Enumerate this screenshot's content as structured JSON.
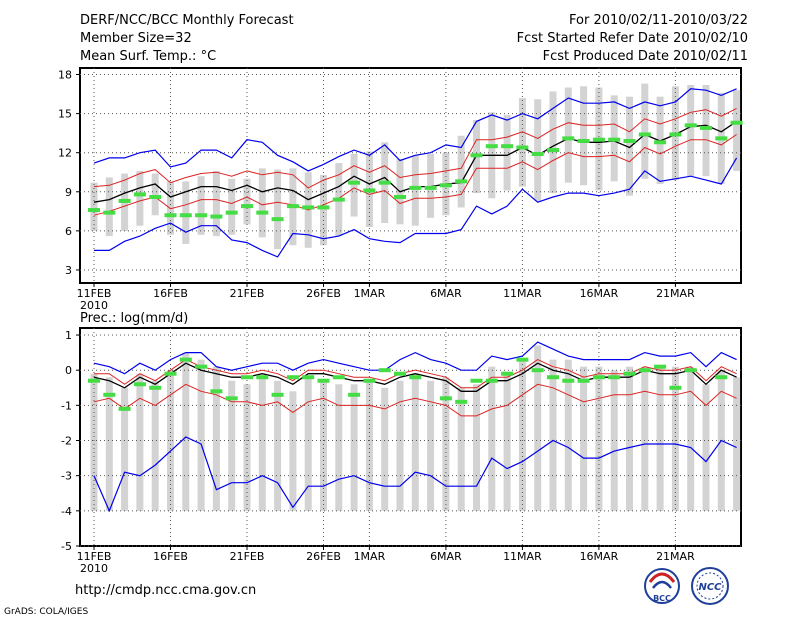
{
  "header": {
    "title": "DERF/NCC/BCC Monthly Forecast",
    "member_size": "Member Size=32",
    "variable": "Mean Surf. Temp.: °C",
    "period": "For 2010/02/11-2010/03/22",
    "start": "Fcst Started Refer Date 2010/02/10",
    "produced": "Fcst Produced Date 2010/02/11"
  },
  "footer": {
    "url": "http://cmdp.ncc.cma.gov.cn",
    "grads": "GrADS: COLA/IGES",
    "logo_bcc": "BCC",
    "logo_ncc": "NCC"
  },
  "colors": {
    "ensemble_mean": "#000000",
    "spread": "#dd2222",
    "extremes": "#0000ee",
    "observed": "#44dd44",
    "box": "#d3d3d3"
  },
  "chart_data": [
    {
      "type": "line",
      "title": "Mean Surf. Temp.: °C",
      "x_start": "11FEB",
      "x_tick_labels": [
        "11FEB",
        "16FEB",
        "21FEB",
        "26FEB",
        "1MAR",
        "6MAR",
        "11MAR",
        "16MAR",
        "21MAR"
      ],
      "x_tick_days": [
        0,
        5,
        10,
        15,
        18,
        23,
        28,
        33,
        38
      ],
      "year_label": "2010",
      "ylim": [
        2,
        18.5
      ],
      "y_ticks": [
        3,
        6,
        9,
        12,
        15,
        18
      ],
      "series": [
        {
          "name": "ensemble mean",
          "values": [
            8.2,
            8.4,
            8.9,
            9.3,
            9.6,
            8.6,
            9.0,
            9.4,
            9.4,
            9.1,
            9.5,
            9.0,
            9.3,
            9.1,
            8.4,
            8.9,
            9.4,
            10.2,
            9.6,
            10.1,
            9.0,
            9.4,
            9.4,
            9.6,
            9.7,
            11.8,
            11.8,
            11.8,
            12.4,
            11.8,
            12.5,
            13.1,
            12.8,
            12.8,
            12.9,
            12.4,
            13.4,
            12.9,
            13.4,
            14.0,
            14.1,
            13.6,
            14.4
          ]
        },
        {
          "name": "upper spread",
          "values": [
            9.4,
            9.5,
            9.9,
            10.4,
            10.7,
            9.7,
            10.1,
            10.4,
            10.5,
            10.2,
            10.6,
            10.3,
            10.5,
            10.3,
            9.3,
            9.9,
            10.3,
            11.0,
            10.5,
            11.0,
            10.1,
            10.3,
            10.4,
            10.6,
            10.8,
            13.0,
            13.0,
            13.2,
            13.6,
            13.1,
            13.8,
            14.3,
            14.1,
            14.1,
            14.2,
            13.6,
            14.6,
            14.2,
            14.6,
            15.1,
            15.3,
            14.8,
            15.4
          ]
        },
        {
          "name": "lower spread",
          "values": [
            7.2,
            7.5,
            7.9,
            8.3,
            8.6,
            7.7,
            8.0,
            8.4,
            8.4,
            8.1,
            8.6,
            8.0,
            8.2,
            8.0,
            7.6,
            8.0,
            8.5,
            9.3,
            8.8,
            9.1,
            8.1,
            8.5,
            8.5,
            8.6,
            8.8,
            10.8,
            10.8,
            10.8,
            11.3,
            10.7,
            11.4,
            12.0,
            11.7,
            11.7,
            11.8,
            11.3,
            12.4,
            11.9,
            12.5,
            13.0,
            13.0,
            12.6,
            13.4
          ]
        },
        {
          "name": "maximum",
          "values": [
            11.2,
            11.6,
            11.6,
            12.0,
            12.2,
            10.9,
            11.2,
            12.2,
            12.2,
            11.6,
            13.0,
            12.8,
            11.8,
            11.3,
            10.6,
            11.1,
            11.7,
            12.2,
            11.8,
            12.6,
            11.4,
            11.8,
            12.0,
            12.6,
            12.4,
            14.4,
            14.9,
            14.5,
            15.0,
            14.6,
            15.4,
            16.2,
            15.8,
            15.8,
            15.9,
            15.4,
            15.9,
            15.6,
            15.9,
            16.9,
            16.8,
            16.4,
            16.9
          ]
        },
        {
          "name": "minimum",
          "values": [
            4.5,
            4.5,
            5.2,
            5.6,
            6.2,
            6.6,
            5.9,
            6.4,
            6.4,
            5.3,
            5.1,
            4.5,
            4.0,
            5.8,
            5.7,
            5.4,
            5.6,
            6.1,
            5.4,
            5.2,
            5.1,
            5.8,
            5.8,
            5.8,
            6.1,
            7.9,
            7.3,
            7.9,
            9.2,
            8.2,
            8.6,
            8.9,
            8.9,
            8.7,
            8.9,
            9.2,
            10.6,
            9.8,
            10.0,
            10.2,
            9.9,
            9.6,
            11.6
          ]
        },
        {
          "name": "observed",
          "values": [
            7.6,
            7.4,
            8.3,
            8.8,
            8.6,
            7.2,
            7.2,
            7.2,
            7.1,
            7.4,
            7.9,
            7.4,
            6.9,
            7.9,
            7.8,
            7.8,
            8.4,
            9.7,
            9.1,
            9.7,
            8.6,
            9.3,
            9.3,
            9.5,
            9.8,
            11.8,
            12.5,
            12.5,
            12.4,
            11.9,
            12.2,
            13.1,
            12.9,
            13.0,
            13.0,
            12.9,
            13.4,
            12.8,
            13.4,
            14.1,
            13.9,
            13.1,
            14.3
          ]
        }
      ],
      "box_ranges": [
        [
          6.0,
          9.7
        ],
        [
          5.6,
          10.1
        ],
        [
          6.0,
          10.4
        ],
        [
          6.4,
          10.6
        ],
        [
          7.2,
          10.4
        ],
        [
          5.7,
          9.8
        ],
        [
          5.0,
          9.8
        ],
        [
          5.7,
          10.2
        ],
        [
          5.6,
          10.6
        ],
        [
          5.7,
          10.0
        ],
        [
          6.5,
          10.0
        ],
        [
          5.5,
          10.8
        ],
        [
          4.6,
          10.7
        ],
        [
          4.9,
          10.8
        ],
        [
          4.7,
          10.5
        ],
        [
          4.9,
          10.3
        ],
        [
          5.6,
          11.2
        ],
        [
          7.1,
          11.9
        ],
        [
          6.3,
          12.1
        ],
        [
          6.6,
          12.8
        ],
        [
          6.5,
          11.5
        ],
        [
          6.4,
          11.8
        ],
        [
          7.0,
          11.9
        ],
        [
          7.2,
          12.0
        ],
        [
          7.8,
          13.3
        ],
        [
          8.9,
          14.5
        ],
        [
          8.5,
          15.1
        ],
        [
          9.1,
          14.9
        ],
        [
          9.4,
          16.2
        ],
        [
          8.3,
          16.1
        ],
        [
          8.9,
          16.7
        ],
        [
          9.7,
          17.0
        ],
        [
          9.5,
          17.1
        ],
        [
          9.1,
          17.0
        ],
        [
          9.8,
          16.4
        ],
        [
          8.7,
          16.3
        ],
        [
          10.0,
          17.3
        ],
        [
          9.6,
          16.3
        ],
        [
          9.9,
          17.1
        ],
        [
          10.2,
          17.2
        ],
        [
          10.2,
          17.2
        ],
        [
          9.6,
          16.6
        ],
        [
          10.6,
          16.8
        ]
      ]
    },
    {
      "type": "line",
      "title": "Prec.: log(mm/d)",
      "x_start": "11FEB",
      "x_tick_labels": [
        "11FEB",
        "16FEB",
        "21FEB",
        "26FEB",
        "1MAR",
        "6MAR",
        "11MAR",
        "16MAR",
        "21MAR"
      ],
      "x_tick_days": [
        0,
        5,
        10,
        15,
        18,
        23,
        28,
        33,
        38
      ],
      "year_label": "2010",
      "ylim": [
        -5,
        1.2
      ],
      "y_ticks": [
        -5,
        -4,
        -3,
        -2,
        -1,
        0,
        1
      ],
      "series": [
        {
          "name": "ensemble mean",
          "values": [
            -0.2,
            -0.3,
            -0.5,
            -0.2,
            -0.4,
            -0.1,
            0.2,
            0.0,
            -0.1,
            -0.2,
            -0.2,
            -0.1,
            -0.2,
            -0.4,
            -0.1,
            -0.1,
            -0.2,
            -0.3,
            -0.3,
            -0.4,
            -0.2,
            -0.1,
            -0.2,
            -0.3,
            -0.6,
            -0.6,
            -0.3,
            -0.3,
            -0.1,
            0.2,
            0.0,
            -0.1,
            -0.3,
            -0.2,
            -0.2,
            -0.2,
            0.0,
            -0.1,
            -0.1,
            0.0,
            -0.4,
            0.0,
            -0.2
          ]
        },
        {
          "name": "upper spread",
          "values": [
            -0.1,
            -0.1,
            -0.4,
            -0.1,
            -0.3,
            0.0,
            0.3,
            0.1,
            0.0,
            -0.1,
            -0.1,
            0.0,
            -0.1,
            -0.3,
            0.0,
            0.0,
            -0.1,
            -0.2,
            -0.2,
            -0.3,
            -0.1,
            0.0,
            -0.1,
            -0.2,
            -0.5,
            -0.5,
            -0.2,
            -0.2,
            0.0,
            0.3,
            0.1,
            0.0,
            -0.2,
            -0.1,
            -0.1,
            -0.1,
            0.1,
            0.0,
            0.0,
            0.1,
            -0.3,
            0.1,
            -0.1
          ]
        },
        {
          "name": "lower spread",
          "values": [
            -0.9,
            -0.8,
            -1.1,
            -0.8,
            -1.0,
            -0.7,
            -0.4,
            -0.6,
            -0.7,
            -0.9,
            -0.9,
            -1.0,
            -0.9,
            -1.2,
            -0.9,
            -0.8,
            -1.0,
            -1.0,
            -1.0,
            -1.1,
            -0.9,
            -0.8,
            -0.9,
            -1.0,
            -1.3,
            -1.3,
            -1.1,
            -1.0,
            -0.7,
            -0.4,
            -0.5,
            -0.7,
            -0.9,
            -0.8,
            -0.7,
            -0.7,
            -0.6,
            -0.7,
            -0.7,
            -0.6,
            -1.0,
            -0.6,
            -0.8
          ]
        },
        {
          "name": "maximum",
          "values": [
            0.2,
            0.1,
            -0.1,
            0.2,
            0.0,
            0.3,
            0.5,
            0.5,
            0.1,
            0.0,
            0.1,
            0.2,
            0.2,
            0.0,
            0.2,
            0.3,
            0.2,
            0.1,
            0.0,
            0.0,
            0.3,
            0.5,
            0.3,
            0.2,
            0.0,
            0.0,
            0.4,
            0.3,
            0.4,
            0.8,
            0.6,
            0.4,
            0.3,
            0.3,
            0.3,
            0.3,
            0.5,
            0.4,
            0.4,
            0.5,
            0.1,
            0.5,
            0.3
          ]
        },
        {
          "name": "minimum",
          "values": [
            -3.0,
            -4.0,
            -2.9,
            -3.0,
            -2.7,
            -2.3,
            -1.9,
            -2.1,
            -3.4,
            -3.2,
            -3.2,
            -3.0,
            -3.2,
            -3.9,
            -3.3,
            -3.3,
            -3.1,
            -3.0,
            -3.2,
            -3.3,
            -3.3,
            -2.9,
            -3.0,
            -3.3,
            -3.3,
            -3.3,
            -2.5,
            -2.8,
            -2.6,
            -2.3,
            -2.0,
            -2.2,
            -2.5,
            -2.5,
            -2.3,
            -2.2,
            -2.1,
            -2.1,
            -2.1,
            -2.2,
            -2.6,
            -2.0,
            -2.2
          ]
        },
        {
          "name": "observed",
          "values": [
            -0.3,
            -0.7,
            -1.1,
            -0.4,
            -0.5,
            -0.1,
            0.3,
            0.1,
            -0.6,
            -0.8,
            -0.2,
            -0.2,
            -0.7,
            -0.2,
            -0.2,
            -0.3,
            -0.2,
            -0.7,
            -0.3,
            0.0,
            -0.1,
            -0.2,
            -0.8,
            -0.9,
            -0.3,
            -0.3,
            -0.1,
            0.3,
            0.0,
            -0.2,
            -0.3,
            -0.3,
            -0.2,
            -0.2,
            -0.1,
            0.0,
            0.1,
            -0.5,
            0.0,
            -0.2
          ]
        },
        {
          "name": "observed_days",
          "values": [
            0,
            1,
            2,
            3,
            4,
            5,
            6,
            7,
            8,
            9,
            10,
            11,
            12,
            13,
            14,
            15,
            16,
            17,
            18,
            19,
            20,
            21,
            23,
            24,
            25,
            26,
            27,
            28,
            29,
            30,
            31,
            32,
            33,
            34,
            35,
            36,
            37,
            38,
            39,
            41
          ]
        }
      ],
      "box_ranges": [
        [
          -4.0,
          -0.1
        ],
        [
          -4.0,
          -0.2
        ],
        [
          -4.0,
          -0.5
        ],
        [
          -4.0,
          -0.1
        ],
        [
          -4.0,
          -0.3
        ],
        [
          -4.0,
          0.0
        ],
        [
          -4.0,
          0.5
        ],
        [
          -4.0,
          0.3
        ],
        [
          -4.0,
          0.1
        ],
        [
          -4.0,
          -0.3
        ],
        [
          -4.0,
          -0.4
        ],
        [
          -4.0,
          -0.2
        ],
        [
          -4.0,
          -0.3
        ],
        [
          -4.0,
          -0.6
        ],
        [
          -4.0,
          -0.2
        ],
        [
          -4.0,
          -0.3
        ],
        [
          -4.0,
          -0.4
        ],
        [
          -4.0,
          -0.4
        ],
        [
          -4.0,
          -0.3
        ],
        [
          -4.0,
          -0.5
        ],
        [
          -4.0,
          -0.3
        ],
        [
          -4.0,
          -0.1
        ],
        [
          -4.0,
          -0.3
        ],
        [
          -4.0,
          -0.2
        ],
        [
          -4.0,
          -0.5
        ],
        [
          -4.0,
          -0.4
        ],
        [
          -4.0,
          0.1
        ],
        [
          -4.0,
          -0.1
        ],
        [
          -4.0,
          0.3
        ],
        [
          -4.0,
          0.7
        ],
        [
          -4.0,
          0.3
        ],
        [
          -4.0,
          0.3
        ],
        [
          -4.0,
          0.1
        ],
        [
          -4.0,
          0.1
        ],
        [
          -4.0,
          0.0
        ],
        [
          -4.0,
          0.1
        ],
        [
          -4.0,
          0.1
        ],
        [
          -4.0,
          0.1
        ],
        [
          -4.0,
          0.1
        ],
        [
          -4.0,
          0.1
        ],
        [
          -4.0,
          -0.4
        ],
        [
          -4.0,
          0.0
        ],
        [
          -4.0,
          -0.2
        ]
      ]
    }
  ]
}
